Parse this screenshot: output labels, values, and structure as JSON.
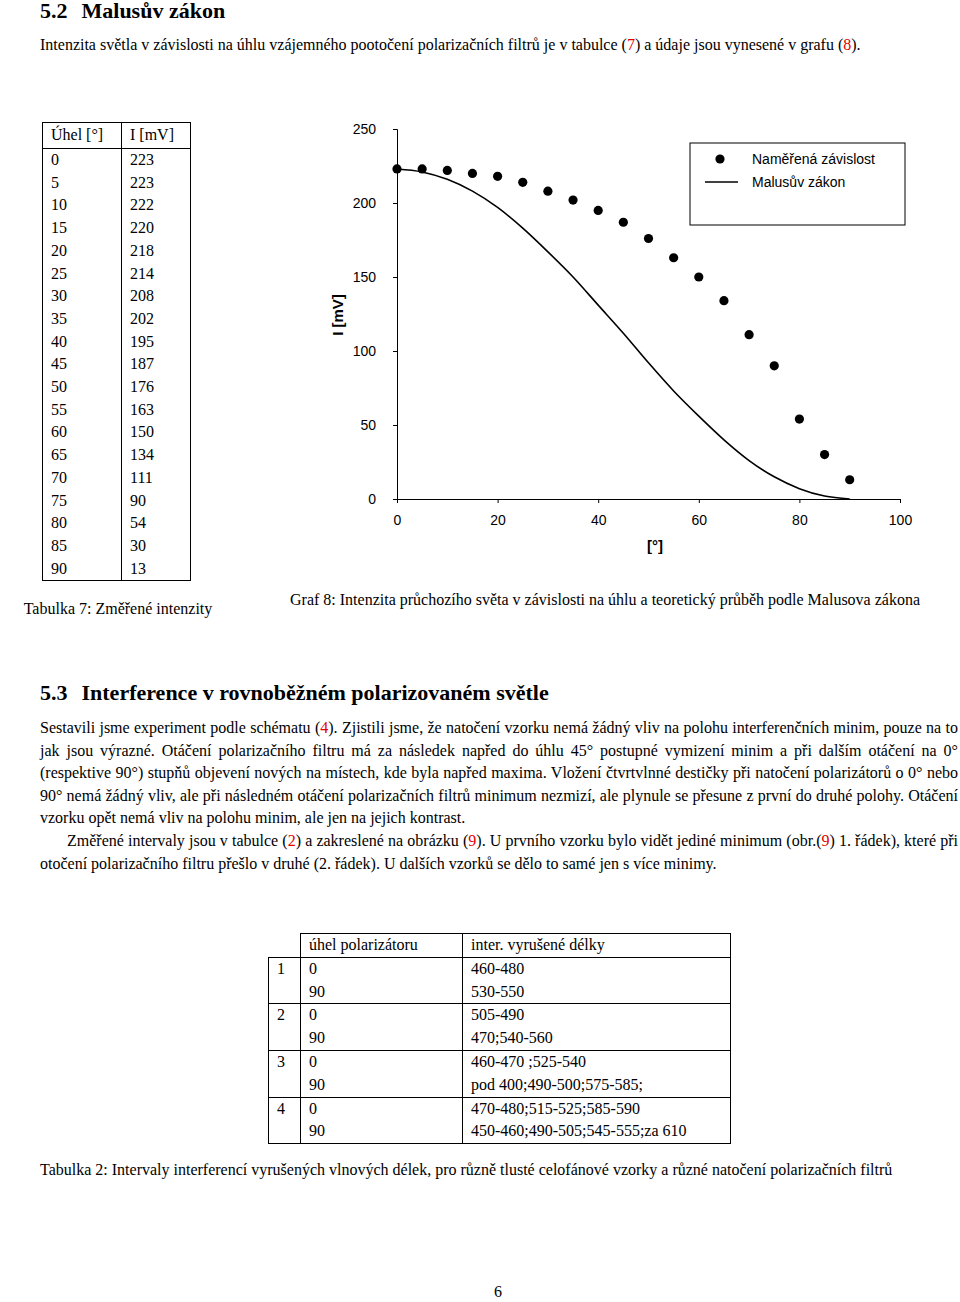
{
  "section_52": {
    "number": "5.2",
    "heading": "Malusův zákon",
    "paragraph": [
      "Intenzita světla v závislosti na úhlu vzájemného pootočení polarizačních filtrů je v tabulce (",
      {
        "ref": "7"
      },
      ") a údaje jsou vynesené v grafu (",
      {
        "ref": "8"
      },
      ")."
    ]
  },
  "table_7": {
    "header": [
      "Úhel [°]",
      "I [mV]"
    ],
    "rows": [
      [
        0,
        223
      ],
      [
        5,
        223
      ],
      [
        10,
        222
      ],
      [
        15,
        220
      ],
      [
        20,
        218
      ],
      [
        25,
        214
      ],
      [
        30,
        208
      ],
      [
        35,
        202
      ],
      [
        40,
        195
      ],
      [
        45,
        187
      ],
      [
        50,
        176
      ],
      [
        55,
        163
      ],
      [
        60,
        150
      ],
      [
        65,
        134
      ],
      [
        70,
        111
      ],
      [
        75,
        90
      ],
      [
        80,
        54
      ],
      [
        85,
        30
      ],
      [
        90,
        13
      ]
    ],
    "caption": "Tabulka 7: Změřené intenzity"
  },
  "chart_data": {
    "type": "scatter",
    "xlabel": "[°]",
    "ylabel": "I [mV]",
    "xlim": [
      0,
      100
    ],
    "ylim": [
      0,
      250
    ],
    "xticks": [
      0,
      20,
      40,
      60,
      80,
      100
    ],
    "yticks": [
      0,
      50,
      100,
      150,
      200,
      250
    ],
    "grid": false,
    "legend": "top-right",
    "series": [
      {
        "name": "Naměřená závislost",
        "type": "scatter",
        "marker": "circle",
        "color": "#000000",
        "x": [
          0,
          5,
          10,
          15,
          20,
          25,
          30,
          35,
          40,
          45,
          50,
          55,
          60,
          65,
          70,
          75,
          80,
          85,
          90
        ],
        "values": [
          223,
          223,
          222,
          220,
          218,
          214,
          208,
          202,
          195,
          187,
          176,
          163,
          150,
          134,
          111,
          90,
          54,
          30,
          13
        ]
      },
      {
        "name": "Malusův zákon",
        "type": "line",
        "line_style": "solid",
        "color": "#000000",
        "x": [
          0,
          5,
          10,
          15,
          20,
          25,
          30,
          35,
          40,
          45,
          50,
          55,
          60,
          65,
          70,
          75,
          80,
          85,
          90
        ],
        "values": [
          223,
          221,
          216,
          208,
          197,
          183,
          167,
          150,
          131,
          112,
          92,
          73,
          56,
          40,
          26,
          15,
          7,
          2,
          0
        ]
      }
    ]
  },
  "graph_caption": "Graf 8: Intenzita průchozího světa v závislosti na úhlu a teoretický průběh podle Malusova zákona",
  "section_53": {
    "number": "5.3",
    "heading": "Interference v rovnoběžném polarizovaném světle",
    "paragraphs": [
      [
        "Sestavili jsme experiment podle schématu (",
        {
          "ref": "4"
        },
        "). Zjistili jsme, že natočení vzorku nemá žádný vliv na polohu interferenčních minim, pouze na to jak jsou výrazné. Otáčení polarizačního filtru má za následek napřed do úhlu 45° postupné vymizení minim a při dalším otáčení na 0° (respektive 90°) stupňů objevení nových na místech, kde byla napřed maxima. Vložení čtvrtvlnné destičky při natočení polarizátorů o 0° nebo 90° nemá žádný vliv, ale při následném otáčení polarizačních filtrů minimum nezmizí, ale plynule se přesune z první do druhé polohy. Otáčení vzorku opět nemá vliv na polohu minim, ale jen na jejich kontrast."
      ],
      [
        "Změřené intervaly jsou v tabulce (",
        {
          "ref": "2"
        },
        ") a zakreslené na obrázku (",
        {
          "ref": "9"
        },
        "). U prvního vzorku bylo vidět jediné minimum (obr.(",
        {
          "ref": "9"
        },
        ") 1. řádek), které při otočení polarizačního filtru přešlo v druhé (2. řádek). U dalších vzorků se dělo to samé jen s více minimy."
      ]
    ]
  },
  "table_2": {
    "header": [
      "úhel polarizátoru",
      "inter. vyrušené délky"
    ],
    "groups": [
      {
        "sample": 1,
        "rows": [
          [
            0,
            "460-480"
          ],
          [
            90,
            "530-550"
          ]
        ]
      },
      {
        "sample": 2,
        "rows": [
          [
            0,
            "505-490"
          ],
          [
            90,
            "470;540-560"
          ]
        ]
      },
      {
        "sample": 3,
        "rows": [
          [
            0,
            "460-470 ;525-540"
          ],
          [
            90,
            "pod 400;490-500;575-585;"
          ]
        ]
      },
      {
        "sample": 4,
        "rows": [
          [
            0,
            "470-480;515-525;585-590"
          ],
          [
            90,
            "450-460;490-505;545-555;za 610"
          ]
        ]
      }
    ],
    "caption": "Tabulka 2: Intervaly interferencí vyrušených vlnových délek, pro různě tlusté celofánové vzorky a různé natočení polarizačních filtrů"
  },
  "page_number": 6
}
